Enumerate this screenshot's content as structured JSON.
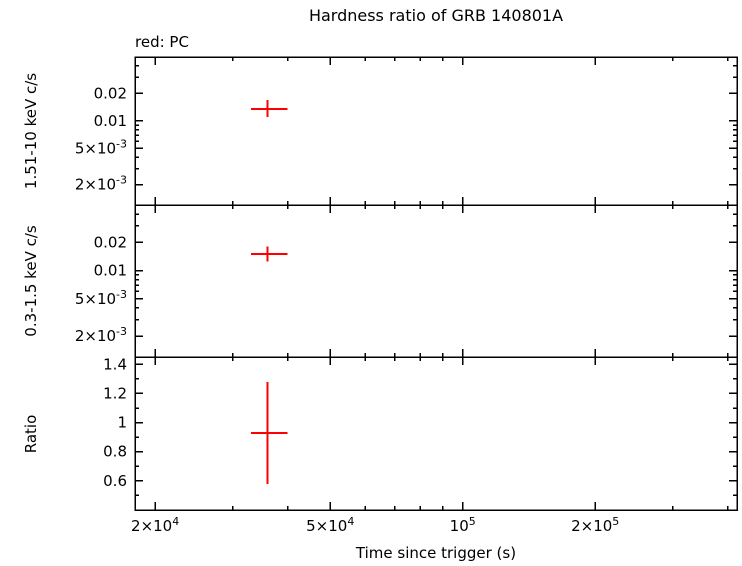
{
  "chart_data": {
    "type": "scatter",
    "title": "Hardness ratio of GRB 140801A",
    "legend_note": "red: PC",
    "xlabel": "Time since trigger (s)",
    "xscale": "log",
    "xlim": [
      18000,
      420000
    ],
    "xticks": [
      {
        "v": 20000,
        "label": "2×10^4"
      },
      {
        "v": 50000,
        "label": "5×10^4"
      },
      {
        "v": 100000,
        "label": "10^5"
      },
      {
        "v": 200000,
        "label": "2×10^5"
      }
    ],
    "point_color": "#ff0000",
    "axis_color": "#000000",
    "background_color": "#ffffff",
    "grid": false,
    "panels": [
      {
        "ylabel": "1.51-10 keV c/s",
        "yscale": "log",
        "ylim": [
          0.0012,
          0.05
        ],
        "yticks": [
          {
            "v": 0.02,
            "label": "0.02"
          },
          {
            "v": 0.01,
            "label": "0.01"
          },
          {
            "v": 0.005,
            "label": "5×10^-3"
          },
          {
            "v": 0.002,
            "label": "2×10^-3"
          }
        ],
        "points": [
          {
            "x": 36000,
            "x_lo": 33000,
            "x_hi": 40000,
            "y": 0.0135,
            "y_lo": 0.011,
            "y_hi": 0.017
          }
        ]
      },
      {
        "ylabel": "0.3-1.5 keV c/s",
        "yscale": "log",
        "ylim": [
          0.0012,
          0.05
        ],
        "yticks": [
          {
            "v": 0.02,
            "label": "0.02"
          },
          {
            "v": 0.01,
            "label": "0.01"
          },
          {
            "v": 0.005,
            "label": "5×10^-3"
          },
          {
            "v": 0.002,
            "label": "2×10^-3"
          }
        ],
        "points": [
          {
            "x": 36000,
            "x_lo": 33000,
            "x_hi": 40000,
            "y": 0.015,
            "y_lo": 0.0125,
            "y_hi": 0.018
          }
        ]
      },
      {
        "ylabel": "Ratio",
        "yscale": "linear",
        "ylim": [
          0.4,
          1.45
        ],
        "minor_step": 0.1,
        "yticks": [
          {
            "v": 1.4,
            "label": "1.4"
          },
          {
            "v": 1.2,
            "label": "1.2"
          },
          {
            "v": 1,
            "label": "1"
          },
          {
            "v": 0.8,
            "label": "0.8"
          },
          {
            "v": 0.6,
            "label": "0.6"
          }
        ],
        "points": [
          {
            "x": 36000,
            "x_lo": 33000,
            "x_hi": 40000,
            "y": 0.93,
            "y_lo": 0.58,
            "y_hi": 1.28
          }
        ]
      }
    ]
  }
}
